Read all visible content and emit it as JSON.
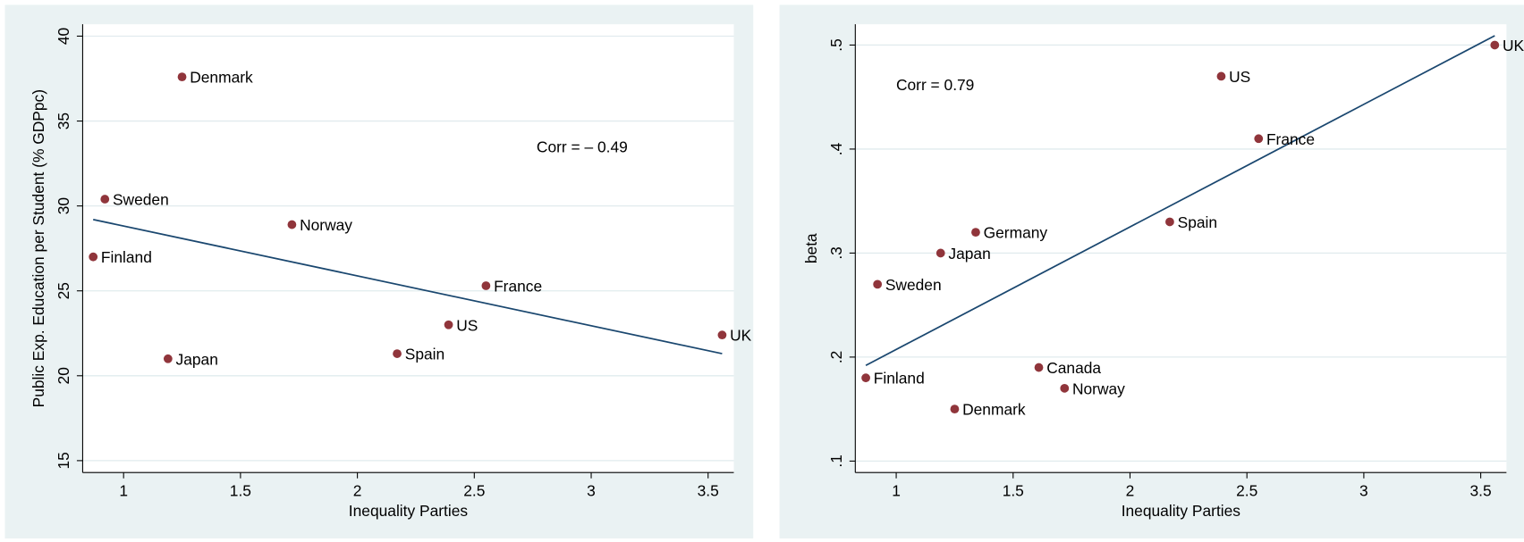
{
  "chart_data": [
    {
      "type": "scatter",
      "x_label": "Inequality Parties",
      "y_label": "Public Exp. Education per Student (% GDPpc)",
      "annotation": "Corr = – 0.49",
      "points": {
        "color": "#90353b",
        "labels": [
          "Denmark",
          "Sweden",
          "Norway",
          "Finland",
          "France",
          "US",
          "UK",
          "Spain",
          "Japan"
        ],
        "x": [
          1.25,
          0.92,
          1.72,
          0.87,
          2.55,
          2.39,
          3.56,
          2.17,
          1.19
        ],
        "y": [
          37.6,
          30.4,
          28.9,
          27.0,
          25.3,
          23.0,
          22.4,
          21.3,
          21.0
        ]
      },
      "fit": {
        "color": "#1a476f",
        "x": [
          0.87,
          3.56
        ],
        "y": [
          29.2,
          21.3
        ]
      },
      "xlim": [
        0.825,
        3.61
      ],
      "ylim": [
        14.3,
        40.7
      ],
      "xticks": [
        1,
        1.5,
        2,
        2.5,
        3,
        3.5
      ],
      "yticks": [
        15,
        20,
        25,
        30,
        35,
        40
      ],
      "grid": true
    },
    {
      "type": "scatter",
      "x_label": "Inequality Parties",
      "y_label": "beta",
      "annotation": "Corr = 0.79",
      "points": {
        "color": "#90353b",
        "labels": [
          "UK",
          "US",
          "France",
          "Spain",
          "Germany",
          "Japan",
          "Sweden",
          "Canada",
          "Finland",
          "Norway",
          "Denmark"
        ],
        "x": [
          3.56,
          2.39,
          2.55,
          2.17,
          1.34,
          1.19,
          0.92,
          1.61,
          0.87,
          1.72,
          1.25
        ],
        "y": [
          0.5,
          0.47,
          0.41,
          0.33,
          0.32,
          0.3,
          0.27,
          0.19,
          0.18,
          0.17,
          0.15
        ]
      },
      "fit": {
        "color": "#1a476f",
        "x": [
          0.87,
          3.56
        ],
        "y": [
          0.192,
          0.509
        ]
      },
      "xlim": [
        0.825,
        3.61
      ],
      "ylim": [
        0.089,
        0.52
      ],
      "xticks": [
        1,
        1.5,
        2,
        2.5,
        3,
        3.5
      ],
      "yticks": [
        {
          "value": 0.1,
          "label": ".1"
        },
        {
          "value": 0.2,
          "label": ".2"
        },
        {
          "value": 0.3,
          "label": ".3"
        },
        {
          "value": 0.4,
          "label": ".4"
        },
        {
          "value": 0.5,
          "label": ".5"
        }
      ],
      "grid": true
    }
  ]
}
